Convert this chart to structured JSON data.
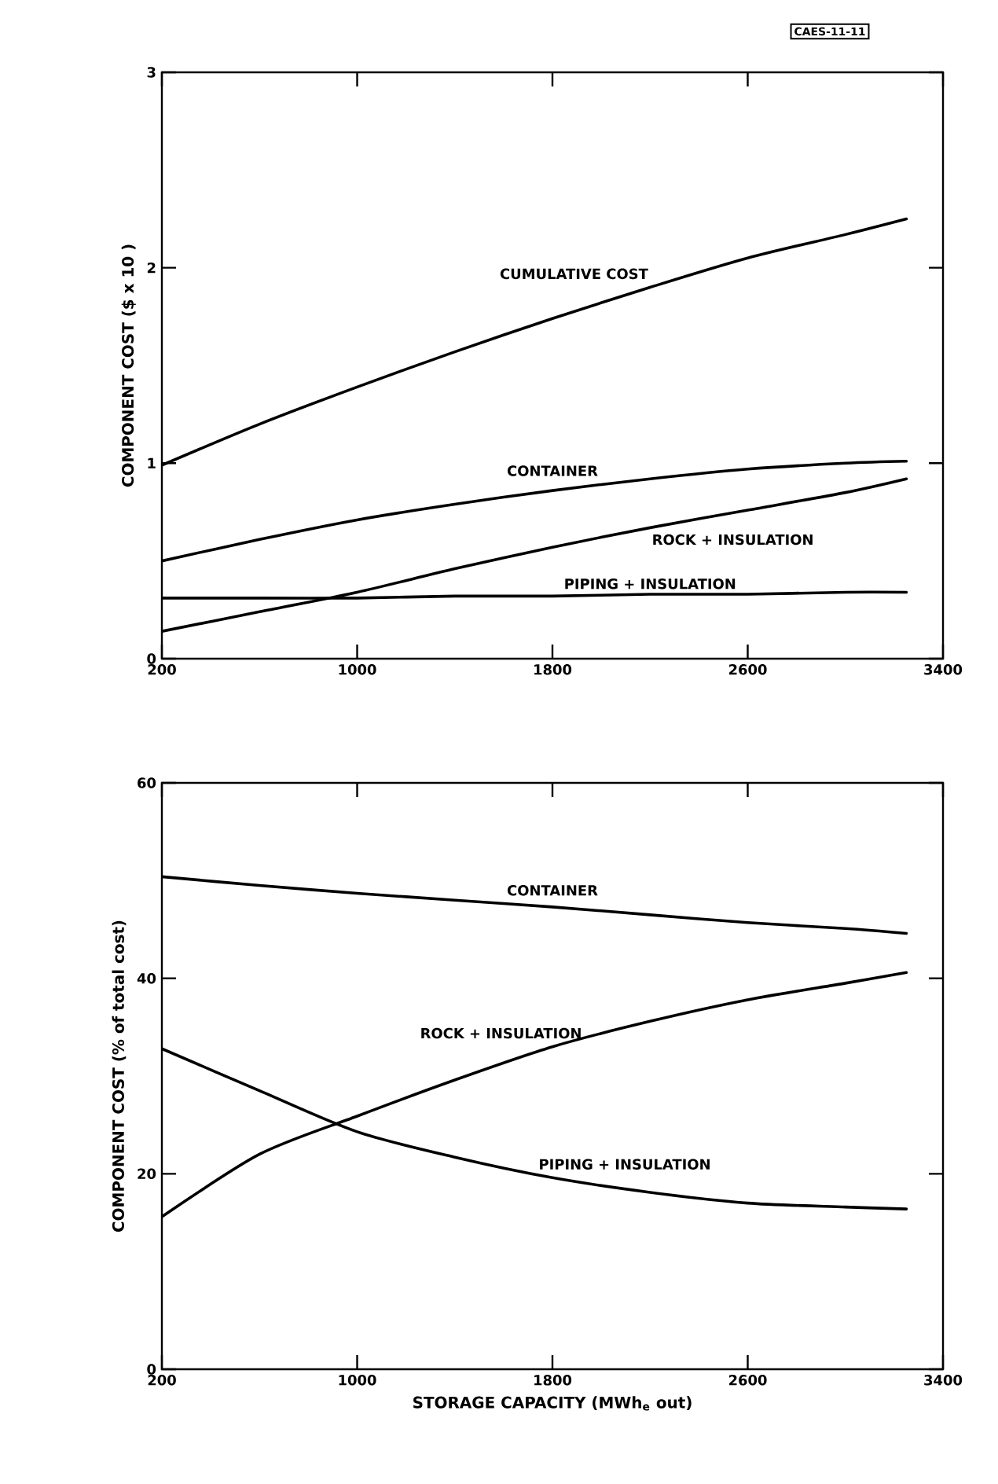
{
  "chart_data": [
    {
      "type": "line",
      "ylabel": "COMPONENT COST ($ x 10 )",
      "annotations": [
        "CAES-11-11"
      ],
      "x": [
        200,
        600,
        1000,
        1400,
        1800,
        2200,
        2600,
        3000,
        3250
      ],
      "xlim": [
        200,
        3400
      ],
      "xticks": [
        200,
        1000,
        1800,
        2600,
        3400
      ],
      "ylim": [
        0,
        3
      ],
      "yticks": [
        0,
        1,
        2,
        3
      ],
      "series": [
        {
          "name": "CUMULATIVE COST",
          "color": "#000000",
          "values": [
            0.99,
            1.2,
            1.39,
            1.57,
            1.74,
            1.9,
            2.05,
            2.17,
            2.25
          ]
        },
        {
          "name": "CONTAINER",
          "color": "#000000",
          "values": [
            0.5,
            0.61,
            0.71,
            0.79,
            0.86,
            0.92,
            0.97,
            1.0,
            1.01
          ]
        },
        {
          "name": "ROCK + INSULATION",
          "color": "#000000",
          "values": [
            0.14,
            0.24,
            0.34,
            0.46,
            0.57,
            0.67,
            0.76,
            0.85,
            0.92
          ]
        },
        {
          "name": "PIPING + INSULATION",
          "color": "#000000",
          "values": [
            0.31,
            0.31,
            0.31,
            0.32,
            0.32,
            0.33,
            0.33,
            0.34,
            0.34
          ]
        }
      ]
    },
    {
      "type": "line",
      "ylabel": "COMPONENT COST (% of total cost)",
      "xlabel": "STORAGE CAPACITY (MWh$_{e}$ out)",
      "x": [
        200,
        600,
        1000,
        1400,
        1800,
        2200,
        2600,
        3000,
        3250
      ],
      "xlim": [
        200,
        3400
      ],
      "xticks": [
        200,
        1000,
        1800,
        2600,
        3400
      ],
      "ylim": [
        0,
        60
      ],
      "yticks": [
        0,
        20,
        40,
        60
      ],
      "series": [
        {
          "name": "CONTAINER",
          "color": "#000000",
          "values": [
            50.4,
            49.5,
            48.7,
            48.0,
            47.3,
            46.5,
            45.7,
            45.1,
            44.6
          ]
        },
        {
          "name": "ROCK + INSULATION",
          "color": "#000000",
          "values": [
            15.6,
            22.0,
            25.9,
            29.6,
            33.0,
            35.6,
            37.8,
            39.5,
            40.6
          ]
        },
        {
          "name": "PIPING + INSULATION",
          "color": "#000000",
          "values": [
            32.8,
            28.5,
            24.3,
            21.7,
            19.6,
            18.1,
            17.0,
            16.6,
            16.4
          ]
        }
      ]
    }
  ]
}
